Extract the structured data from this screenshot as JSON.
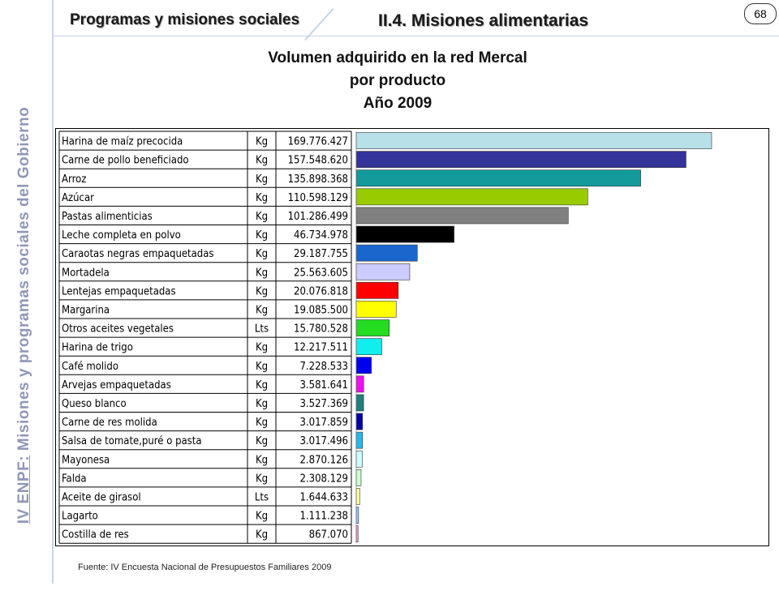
{
  "header": {
    "section": "Programas y misiones sociales",
    "subsection": "II.4. Misiones alimentarias",
    "page_number": "68"
  },
  "side_label": {
    "lead": "IV ENPF:",
    "rest": " Misiones y programas sociales del Gobierno"
  },
  "source": "Fuente: IV Encuesta Nacional de Presupuestos Familiares 2009",
  "chart_data": {
    "type": "bar",
    "orientation": "horizontal",
    "title": [
      "Volumen adquirido en la red Mercal",
      "por producto",
      "Año 2009"
    ],
    "grid": false,
    "legend": "none",
    "xlim": [
      0,
      195000000
    ],
    "rows": [
      {
        "product": "Harina de maíz precocida",
        "unit": "Kg",
        "label": "169.776.427",
        "value": 169776427,
        "color": "#b8e0e8"
      },
      {
        "product": "Carne de pollo beneficiado",
        "unit": "Kg",
        "label": "157.548.620",
        "value": 157548620,
        "color": "#333399"
      },
      {
        "product": "Arroz",
        "unit": "Kg",
        "label": "135.898.368",
        "value": 135898368,
        "color": "#139a9a"
      },
      {
        "product": "Azúcar",
        "unit": "Kg",
        "label": "110.598.129",
        "value": 110598129,
        "color": "#99cc00"
      },
      {
        "product": "Pastas alimenticias",
        "unit": "Kg",
        "label": "101.286.499",
        "value": 101286499,
        "color": "#808080"
      },
      {
        "product": "Leche completa en polvo",
        "unit": "Kg",
        "label": "46.734.978",
        "value": 46734978,
        "color": "#000000"
      },
      {
        "product": "Caraotas negras empaquetadas",
        "unit": "Kg",
        "label": "29.187.755",
        "value": 29187755,
        "color": "#1a66cc"
      },
      {
        "product": "Mortadela",
        "unit": "Kg",
        "label": "25.563.605",
        "value": 25563605,
        "color": "#ccccff"
      },
      {
        "product": "Lentejas empaquetadas",
        "unit": "Kg",
        "label": "20.076.818",
        "value": 20076818,
        "color": "#ff0000"
      },
      {
        "product": "Margarina",
        "unit": "Kg",
        "label": "19.085.500",
        "value": 19085500,
        "color": "#ffff00"
      },
      {
        "product": "Otros aceites vegetales",
        "unit": "Lts",
        "label": "15.780.528",
        "value": 15780528,
        "color": "#22dd22"
      },
      {
        "product": "Harina de trigo",
        "unit": "Kg",
        "label": "12.217.511",
        "value": 12217511,
        "color": "#11eeee"
      },
      {
        "product": "Café molido",
        "unit": "Kg",
        "label": "7.228.533",
        "value": 7228533,
        "color": "#0000ee"
      },
      {
        "product": "Arvejas empaquetadas",
        "unit": "Kg",
        "label": "3.581.641",
        "value": 3581641,
        "color": "#ee11ee"
      },
      {
        "product": "Queso blanco",
        "unit": "Kg",
        "label": "3.527.369",
        "value": 3527369,
        "color": "#1f7f7f"
      },
      {
        "product": "Carne de res molida",
        "unit": "Kg",
        "label": "3.017.859",
        "value": 3017859,
        "color": "#0000aa"
      },
      {
        "product": "Salsa de tomate,puré o pasta",
        "unit": "Kg",
        "label": "3.017.496",
        "value": 3017496,
        "color": "#22bbee"
      },
      {
        "product": "Mayonesa",
        "unit": "Kg",
        "label": "2.870.126",
        "value": 2870126,
        "color": "#ccffff"
      },
      {
        "product": "Falda",
        "unit": "Kg",
        "label": "2.308.129",
        "value": 2308129,
        "color": "#ccffcc"
      },
      {
        "product": "Aceite de girasol",
        "unit": "Lts",
        "label": "1.644.633",
        "value": 1644633,
        "color": "#ffff99"
      },
      {
        "product": "Lagarto",
        "unit": "Kg",
        "label": "1.111.238",
        "value": 1111238,
        "color": "#99ccff"
      },
      {
        "product": "Costilla de res",
        "unit": "Kg",
        "label": "867.070",
        "value": 867070,
        "color": "#ff99cc"
      }
    ]
  }
}
